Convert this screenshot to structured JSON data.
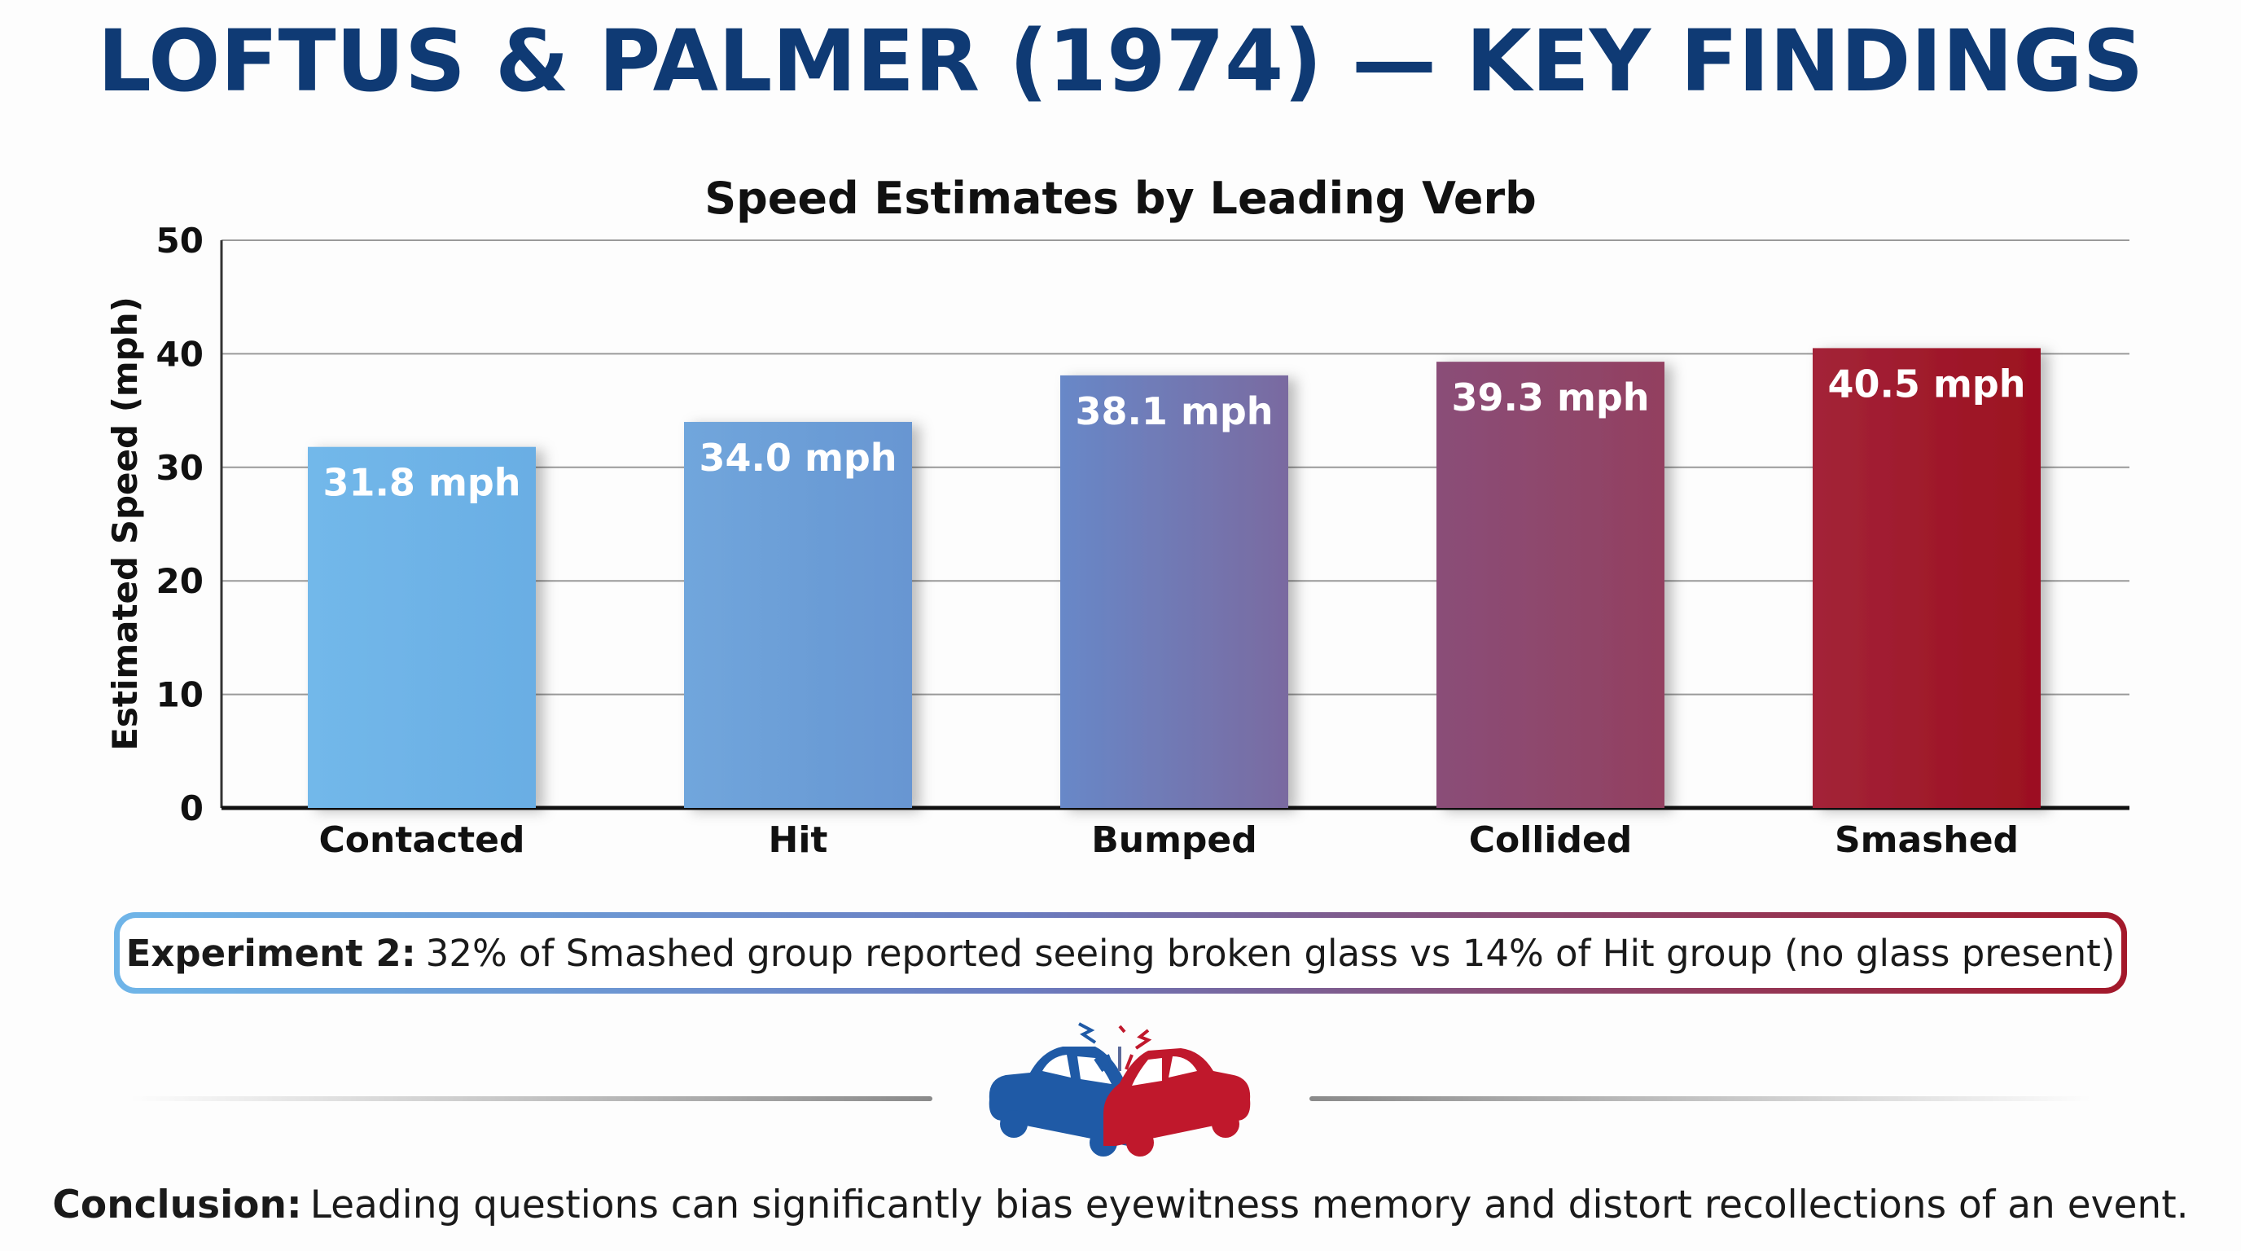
{
  "header": {
    "title": "LOFTUS & PALMER (1974) — KEY FINDINGS"
  },
  "chart_data": {
    "type": "bar",
    "title": "Speed Estimates by Leading Verb",
    "xlabel": "",
    "ylabel": "Estimated Speed (mph)",
    "ylim": [
      0,
      50
    ],
    "yticks": [
      0,
      10,
      20,
      30,
      40,
      50
    ],
    "grid": true,
    "categories": [
      "Contacted",
      "Hit",
      "Bumped",
      "Collided",
      "Smashed"
    ],
    "values": [
      31.8,
      34.0,
      38.1,
      39.3,
      40.5
    ],
    "data_labels": [
      "31.8 mph",
      "34.0 mph",
      "38.1 mph",
      "39.3 mph",
      "40.5 mph"
    ],
    "bar_colors": [
      [
        "#72b8ea",
        "#6aaee4"
      ],
      [
        "#70a6dc",
        "#6896d2"
      ],
      [
        "#6888c8",
        "#7a6aa0"
      ],
      [
        "#8a4e78",
        "#934060"
      ],
      [
        "#a32438",
        "#9c1020"
      ]
    ]
  },
  "experiment": {
    "label": "Experiment 2:",
    "text": "32% of Smashed group reported seeing broken glass vs 14% of Hit group (no glass present)"
  },
  "conclusion": {
    "label": "Conclusion:",
    "text": "Leading questions can significantly bias eyewitness memory and distort recollections of an event."
  },
  "colors": {
    "title": "#0f3a74",
    "car_left": "#1f5aa6",
    "car_right": "#c0182c"
  },
  "icons": {
    "crash": "car-crash-icon"
  }
}
